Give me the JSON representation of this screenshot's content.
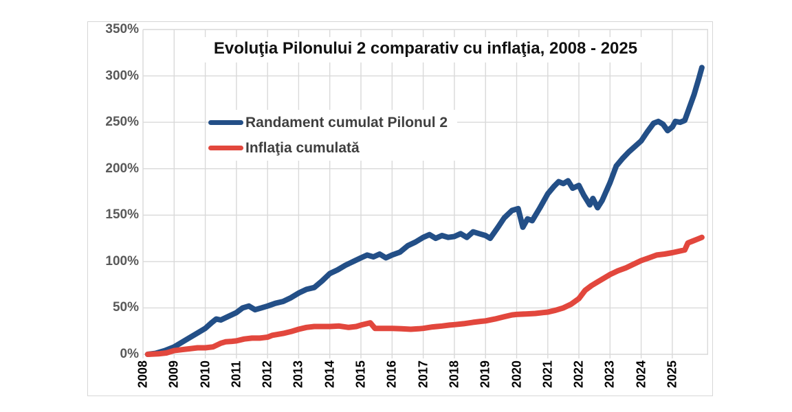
{
  "chart_title": "Evoluţia Pilonului 2 comparativ cu inflaţia, 2008 - 2025",
  "y_axis": {
    "labels": [
      "350%",
      "300%",
      "250%",
      "200%",
      "150%",
      "100%",
      "50%",
      "0%"
    ]
  },
  "x_axis": {
    "labels": [
      "2008",
      "2009",
      "2010",
      "2011",
      "2012",
      "2013",
      "2014",
      "2015",
      "2016",
      "2017",
      "2018",
      "2019",
      "2020",
      "2021",
      "2022",
      "2023",
      "2024",
      "2025"
    ]
  },
  "colors": {
    "series_pilon2": "#234F87",
    "series_inflatie": "#E2473D",
    "grid": "#D9D9D9",
    "frame_border": "#D6D6D6",
    "y_label": "#595959",
    "x_label": "#000000",
    "title": "#111111",
    "legend_text": "#3F3F3F",
    "background": "#FFFFFF"
  },
  "chart_data": {
    "type": "line",
    "title": "Evoluţia Pilonului 2 comparativ cu inflaţia, 2008 - 2025",
    "xlabel": "",
    "ylabel": "",
    "grid": true,
    "legend_position": "top-left-inside",
    "ylim": [
      0,
      350
    ],
    "xlim": [
      2008,
      2026.15
    ],
    "y_tick_step": 50,
    "y_tick_format": "percent",
    "x_ticks": [
      2008,
      2009,
      2010,
      2011,
      2012,
      2013,
      2014,
      2015,
      2016,
      2017,
      2018,
      2019,
      2020,
      2021,
      2022,
      2023,
      2024,
      2025
    ],
    "series": [
      {
        "name": "Randament cumulat Pilonul 2",
        "color": "#234F87",
        "unit": "%",
        "x": [
          2008.15,
          2008.4,
          2008.7,
          2009.0,
          2009.25,
          2009.5,
          2009.75,
          2010.0,
          2010.2,
          2010.35,
          2010.5,
          2010.75,
          2011.0,
          2011.2,
          2011.4,
          2011.6,
          2011.8,
          2012.0,
          2012.25,
          2012.5,
          2012.75,
          2013.0,
          2013.25,
          2013.5,
          2013.75,
          2014.0,
          2014.25,
          2014.5,
          2014.75,
          2015.0,
          2015.2,
          2015.4,
          2015.6,
          2015.8,
          2016.0,
          2016.25,
          2016.5,
          2016.75,
          2017.0,
          2017.2,
          2017.4,
          2017.6,
          2017.8,
          2018.0,
          2018.2,
          2018.4,
          2018.6,
          2018.8,
          2019.0,
          2019.15,
          2019.4,
          2019.6,
          2019.85,
          2020.05,
          2020.2,
          2020.35,
          2020.5,
          2020.75,
          2021.0,
          2021.2,
          2021.35,
          2021.5,
          2021.65,
          2021.8,
          2022.0,
          2022.15,
          2022.35,
          2022.45,
          2022.6,
          2022.75,
          2023.0,
          2023.2,
          2023.4,
          2023.6,
          2023.8,
          2024.0,
          2024.2,
          2024.4,
          2024.55,
          2024.7,
          2024.85,
          2025.0,
          2025.1,
          2025.25,
          2025.4,
          2025.55,
          2025.7,
          2025.85,
          2025.95
        ],
        "y": [
          0,
          1,
          4,
          8,
          13,
          18,
          23,
          28,
          34,
          38,
          37,
          41,
          45,
          50,
          52,
          48,
          50,
          52,
          55,
          57,
          61,
          66,
          70,
          72,
          79,
          87,
          91,
          96,
          100,
          104,
          107,
          105,
          108,
          104,
          107,
          110,
          117,
          121,
          126,
          129,
          125,
          128,
          126,
          127,
          130,
          126,
          132,
          130,
          128,
          125,
          137,
          147,
          155,
          157,
          137,
          146,
          144,
          158,
          173,
          181,
          186,
          184,
          187,
          179,
          182,
          172,
          161,
          168,
          158,
          166,
          185,
          203,
          211,
          218,
          224,
          230,
          240,
          249,
          251,
          248,
          241,
          245,
          251,
          250,
          252,
          266,
          280,
          297,
          309
        ]
      },
      {
        "name": "Inflaţia cumulată",
        "color": "#E2473D",
        "unit": "%",
        "x": [
          2008.15,
          2008.5,
          2008.75,
          2009.0,
          2009.25,
          2009.5,
          2009.75,
          2010.0,
          2010.25,
          2010.5,
          2010.65,
          2010.85,
          2011.0,
          2011.25,
          2011.5,
          2011.75,
          2012.0,
          2012.15,
          2012.5,
          2012.75,
          2013.0,
          2013.25,
          2013.5,
          2013.75,
          2014.0,
          2014.3,
          2014.6,
          2014.85,
          2015.0,
          2015.3,
          2015.45,
          2015.75,
          2016.0,
          2016.3,
          2016.6,
          2016.85,
          2017.0,
          2017.3,
          2017.6,
          2017.85,
          2018.0,
          2018.3,
          2018.6,
          2018.85,
          2019.0,
          2019.3,
          2019.6,
          2019.85,
          2020.0,
          2020.3,
          2020.6,
          2020.85,
          2021.0,
          2021.25,
          2021.5,
          2021.75,
          2022.0,
          2022.2,
          2022.4,
          2022.6,
          2022.8,
          2023.0,
          2023.25,
          2023.5,
          2023.75,
          2024.0,
          2024.25,
          2024.5,
          2024.75,
          2025.0,
          2025.2,
          2025.4,
          2025.5,
          2025.65,
          2025.8,
          2025.95
        ],
        "y": [
          0,
          0.5,
          1.5,
          4,
          5,
          6,
          7,
          7,
          8,
          12,
          13.5,
          14,
          14.5,
          16.5,
          17.5,
          17.5,
          18.5,
          20.5,
          22.5,
          24.5,
          27,
          29,
          30,
          30,
          30,
          30.5,
          29,
          30,
          31.5,
          34,
          28,
          28,
          28,
          27.5,
          27,
          27.5,
          28,
          29.5,
          30.5,
          31.5,
          32,
          33,
          34.5,
          35.5,
          36,
          38,
          40.5,
          42.5,
          43,
          43.5,
          44,
          45,
          45.5,
          47.5,
          50,
          54,
          60,
          69,
          74,
          78,
          82,
          86,
          90,
          93,
          97,
          101,
          104,
          107,
          108,
          109.5,
          111,
          112.5,
          120,
          122,
          124,
          126
        ]
      }
    ]
  }
}
